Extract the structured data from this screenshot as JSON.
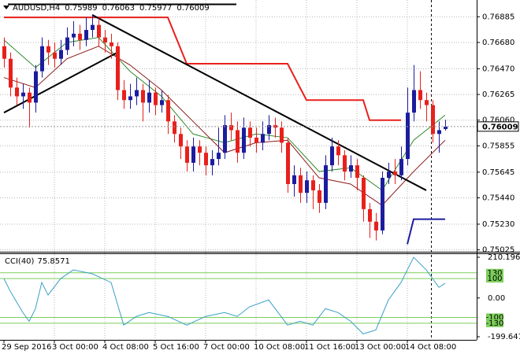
{
  "chart_data": [
    {
      "type": "candlestick",
      "title": "AUDUSD,H4",
      "categories": [
        "29 Sep 2016",
        null,
        null,
        null,
        null,
        null,
        null,
        null,
        "3 Oct 00:00",
        null,
        null,
        null,
        null,
        null,
        null,
        null,
        "4 Oct 08:00",
        null,
        null,
        null,
        null,
        null,
        null,
        null,
        "5 Oct 16:00",
        null,
        null,
        null,
        null,
        null,
        null,
        null,
        "7 Oct 00:00",
        null,
        null,
        null,
        null,
        null,
        null,
        null,
        "10 Oct 08:00",
        null,
        null,
        null,
        null,
        null,
        null,
        null,
        "11 Oct 16:00",
        null,
        null,
        null,
        null,
        null,
        null,
        null,
        "13 Oct 00:00",
        null,
        null,
        null,
        null,
        null,
        null,
        null,
        "14 Oct 08:00",
        null,
        null,
        null,
        null,
        null,
        null
      ],
      "open": [
        0.7665,
        0.7655,
        0.7632,
        0.7625,
        0.7628,
        0.762,
        0.7645,
        0.7665,
        0.766,
        0.7655,
        0.7662,
        0.7672,
        0.7675,
        0.767,
        0.7678,
        0.7682,
        0.7672,
        0.7668,
        0.7665,
        0.763,
        0.7622,
        0.7625,
        0.763,
        0.762,
        0.7628,
        0.7618,
        0.7622,
        0.7605,
        0.7595,
        0.7585,
        0.7572,
        0.7585,
        0.758,
        0.757,
        0.7575,
        0.758,
        0.7602,
        0.7598,
        0.758,
        0.76,
        0.7592,
        0.7588,
        0.7595,
        0.7602,
        0.76,
        0.7588,
        0.7555,
        0.7562,
        0.7548,
        0.7558,
        0.755,
        0.754,
        0.757,
        0.7585,
        0.7578,
        0.7565,
        0.757,
        0.756,
        0.7535,
        0.7525,
        0.7518,
        0.756,
        0.7565,
        0.7562,
        0.7575,
        0.7612,
        0.763,
        0.7622,
        0.7618,
        0.7595,
        0.75989
      ],
      "high": [
        0.7672,
        0.766,
        0.764,
        0.7635,
        0.7632,
        0.765,
        0.7672,
        0.767,
        0.7668,
        0.767,
        0.768,
        0.7685,
        0.7682,
        0.7688,
        0.769,
        0.7688,
        0.7678,
        0.7675,
        0.7668,
        0.7638,
        0.7635,
        0.764,
        0.7635,
        0.7638,
        0.7632,
        0.763,
        0.7626,
        0.761,
        0.76,
        0.759,
        0.7592,
        0.759,
        0.7585,
        0.7582,
        0.76,
        0.761,
        0.7612,
        0.7605,
        0.7608,
        0.7605,
        0.76,
        0.7605,
        0.761,
        0.7608,
        0.7605,
        0.7592,
        0.757,
        0.7568,
        0.7565,
        0.7562,
        0.7555,
        0.7578,
        0.7592,
        0.759,
        0.7582,
        0.7578,
        0.7575,
        0.7562,
        0.754,
        0.7532,
        0.7565,
        0.7572,
        0.7575,
        0.7585,
        0.7632,
        0.765,
        0.7645,
        0.7628,
        0.7622,
        0.7605,
        0.76063
      ],
      "low": [
        0.7648,
        0.7625,
        0.7618,
        0.7615,
        0.76,
        0.7612,
        0.764,
        0.765,
        0.7648,
        0.765,
        0.7658,
        0.7665,
        0.7662,
        0.7665,
        0.7672,
        0.7665,
        0.766,
        0.7655,
        0.7622,
        0.7615,
        0.7615,
        0.7618,
        0.7605,
        0.7612,
        0.761,
        0.7612,
        0.7595,
        0.7588,
        0.7575,
        0.7565,
        0.7565,
        0.757,
        0.7562,
        0.7562,
        0.757,
        0.7575,
        0.759,
        0.7572,
        0.7575,
        0.7585,
        0.758,
        0.7582,
        0.759,
        0.7592,
        0.758,
        0.7548,
        0.7545,
        0.754,
        0.754,
        0.7535,
        0.7532,
        0.7535,
        0.7565,
        0.757,
        0.7558,
        0.756,
        0.755,
        0.7525,
        0.7512,
        0.751,
        0.7515,
        0.7555,
        0.7555,
        0.7558,
        0.757,
        0.7605,
        0.7615,
        0.7605,
        0.7588,
        0.758,
        0.75977
      ],
      "close": [
        0.7655,
        0.7632,
        0.7625,
        0.7628,
        0.762,
        0.7645,
        0.7665,
        0.766,
        0.7655,
        0.7662,
        0.7672,
        0.7675,
        0.767,
        0.7678,
        0.7682,
        0.7672,
        0.7668,
        0.7665,
        0.763,
        0.7622,
        0.7625,
        0.763,
        0.762,
        0.7628,
        0.7618,
        0.7622,
        0.7605,
        0.7595,
        0.7585,
        0.7572,
        0.7585,
        0.758,
        0.757,
        0.7575,
        0.758,
        0.7602,
        0.7598,
        0.758,
        0.76,
        0.7592,
        0.7588,
        0.7595,
        0.7602,
        0.76,
        0.7588,
        0.7555,
        0.7562,
        0.7548,
        0.7558,
        0.755,
        0.754,
        0.757,
        0.7585,
        0.7578,
        0.7565,
        0.757,
        0.756,
        0.7535,
        0.7525,
        0.7518,
        0.756,
        0.7565,
        0.7562,
        0.7575,
        0.7612,
        0.763,
        0.7622,
        0.7618,
        0.7595,
        0.7598,
        0.76009
      ],
      "bull_color": "#1c1c9e",
      "bear_color": "#e8201c",
      "ylim": [
        0.7501,
        0.77
      ],
      "yticks": [
        0.76885,
        {
          "value": 0.7668,
          "label": "0.76680"
        },
        {
          "value": 0.7647,
          "label": "0.76470"
        },
        0.76265,
        {
          "value": 0.7606,
          "label": "0.76060"
        },
        0.75855,
        0.75645,
        {
          "value": 0.7544,
          "label": "0.75440"
        },
        {
          "value": 0.7523,
          "label": "0.75230"
        },
        0.75025
      ],
      "grid": true,
      "overlays": [
        {
          "color": "#e8201c",
          "x": [
            0,
            26,
            29,
            45,
            48,
            57,
            58,
            63
          ],
          "values": [
            0.7688,
            0.7688,
            0.7651,
            0.7651,
            0.7622,
            0.7622,
            0.7606,
            0.7606
          ]
        },
        {
          "color": "#1c1c9e",
          "x": [
            64,
            65,
            70
          ],
          "values": [
            0.7507,
            0.7527,
            0.7527
          ]
        },
        {
          "color": "#2e8b2e",
          "x": [
            0,
            5,
            10,
            15,
            20,
            25,
            30,
            35,
            40,
            45,
            50,
            55,
            60,
            65,
            70
          ],
          "values": [
            0.767,
            0.7648,
            0.7668,
            0.7672,
            0.7645,
            0.7625,
            0.7595,
            0.7588,
            0.7595,
            0.7592,
            0.7565,
            0.7568,
            0.755,
            0.759,
            0.761
          ]
        },
        {
          "color": "#8b1a1a",
          "x": [
            0,
            5,
            10,
            15,
            20,
            25,
            30,
            35,
            40,
            45,
            50,
            55,
            60,
            65,
            70
          ],
          "values": [
            0.764,
            0.7632,
            0.7655,
            0.7665,
            0.765,
            0.763,
            0.7605,
            0.758,
            0.7588,
            0.759,
            0.756,
            0.7555,
            0.7538,
            0.7565,
            0.759
          ]
        },
        {
          "color": "#000000",
          "x": [
            0,
            18
          ],
          "values": [
            0.7612,
            0.766
          ]
        },
        {
          "color": "#000000",
          "x": [
            14,
            67
          ],
          "values": [
            0.769,
            0.755
          ]
        }
      ]
    },
    {
      "type": "line",
      "title": "CCI(40)",
      "x": [
        0,
        1,
        3,
        4,
        5,
        6,
        7,
        9,
        11,
        14,
        17,
        19,
        21,
        23,
        26,
        29,
        32,
        35,
        37,
        39,
        42,
        45,
        47,
        49,
        51,
        53,
        55,
        57,
        59,
        61,
        63,
        65,
        67,
        69,
        70
      ],
      "values": [
        100,
        35,
        -75,
        -120,
        -55,
        80,
        15,
        100,
        145,
        125,
        80,
        -140,
        -95,
        -75,
        -95,
        -140,
        -95,
        -75,
        -95,
        -45,
        -10,
        -140,
        -120,
        -140,
        -55,
        -75,
        -120,
        -185,
        -165,
        -10,
        80,
        210,
        145,
        55,
        75.8571
      ],
      "color": "#3aa0c8",
      "ylim": [
        -199.641,
        210.196
      ],
      "yticks": [
        210.196,
        {
          "value": 0,
          "label": "0.00"
        },
        -199.641
      ],
      "levels": [
        130,
        100,
        -100,
        -130
      ],
      "level_color": "#7ccf5a"
    }
  ]
}
